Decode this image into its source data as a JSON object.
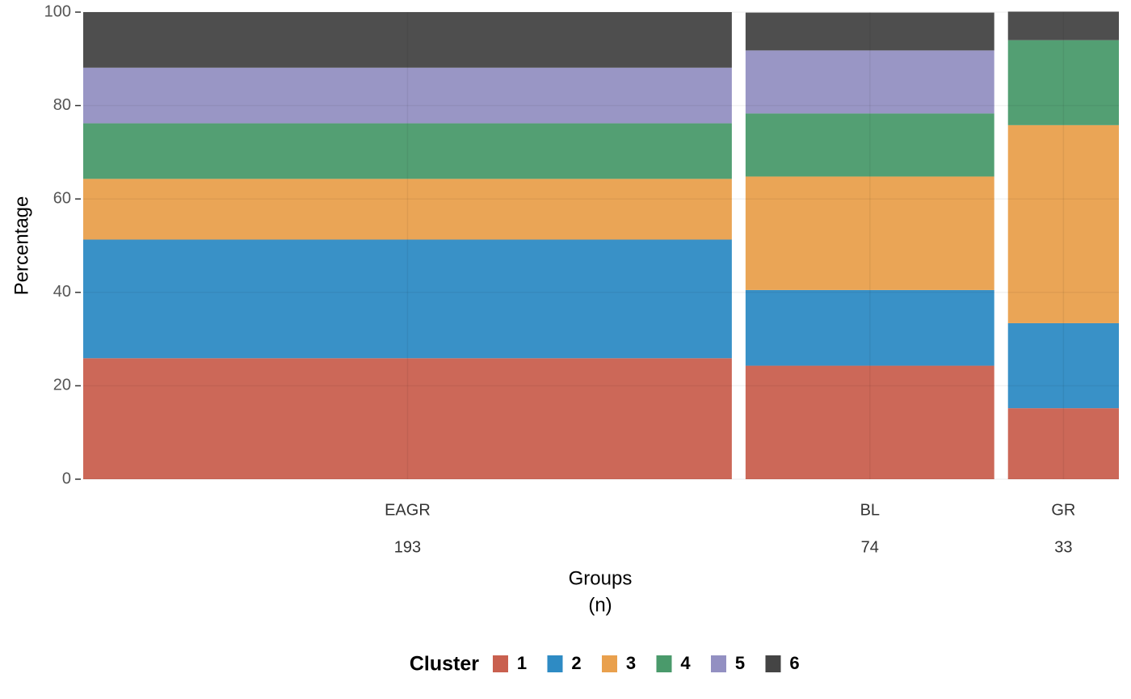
{
  "chart_data": {
    "type": "bar",
    "stacked": true,
    "y_label": "Percentage",
    "x_label": "Groups",
    "x_sublabel": "(n)",
    "categories": [
      "EAGR",
      "BL",
      "GR"
    ],
    "n": [
      193,
      74,
      33
    ],
    "legend_title": "Cluster",
    "series": [
      {
        "name": "1",
        "color": "#c9604f",
        "values": [
          25.9,
          24.3,
          15.2
        ]
      },
      {
        "name": "2",
        "color": "#2e8bc4",
        "values": [
          25.4,
          16.2,
          18.2
        ]
      },
      {
        "name": "3",
        "color": "#e9a04d",
        "values": [
          13.0,
          24.3,
          42.4
        ]
      },
      {
        "name": "4",
        "color": "#4a9a6b",
        "values": [
          11.9,
          13.5,
          18.2
        ]
      },
      {
        "name": "5",
        "color": "#9390c2",
        "values": [
          11.9,
          13.5,
          0
        ]
      },
      {
        "name": "6",
        "color": "#444444",
        "values": [
          11.9,
          8.1,
          6.1
        ]
      }
    ],
    "ylim": [
      0,
      100
    ],
    "yticks": [
      0,
      20,
      40,
      60,
      80,
      100
    ],
    "grid": true
  }
}
